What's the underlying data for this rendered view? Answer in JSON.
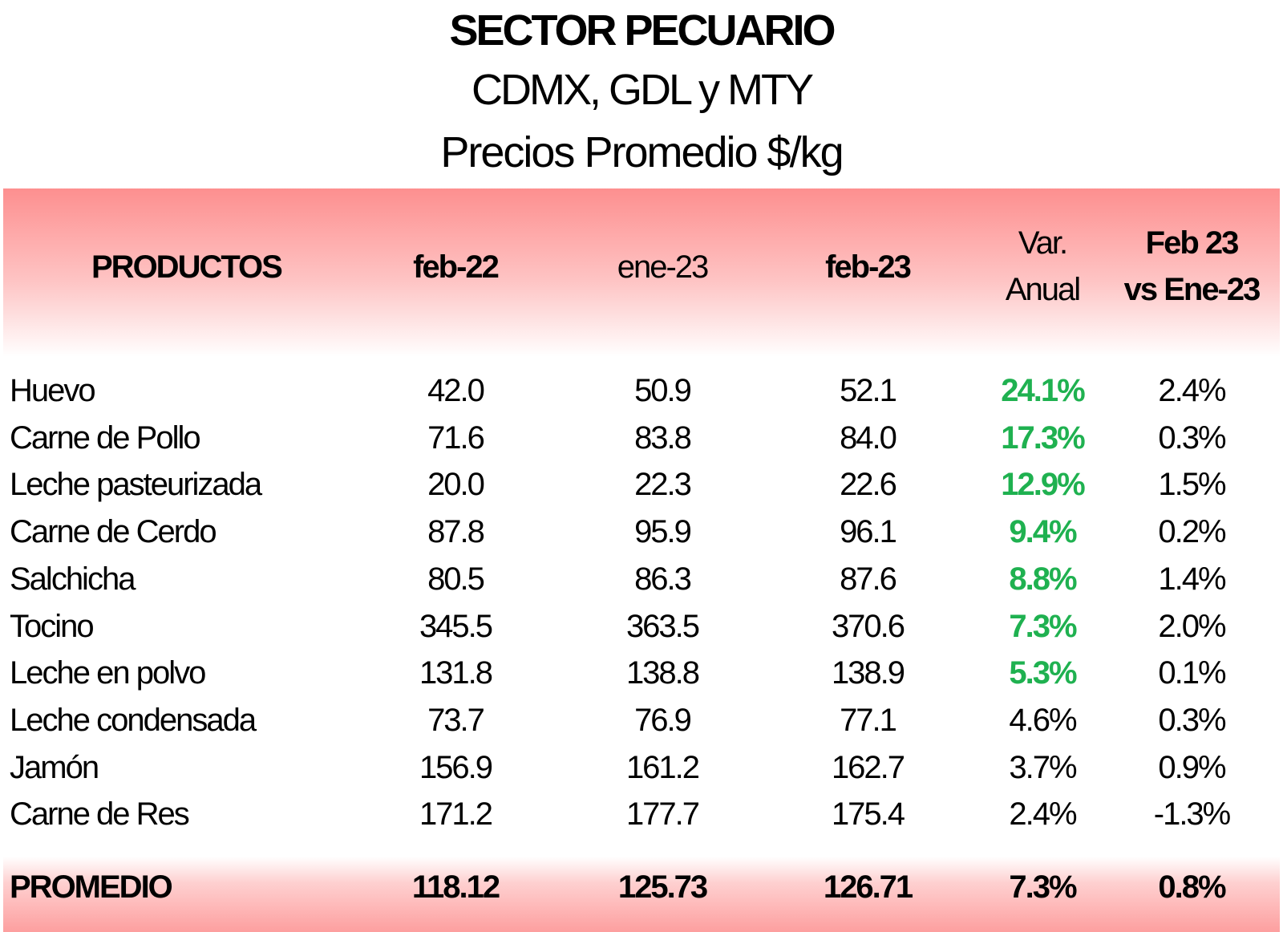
{
  "title": {
    "line1": "SECTOR PECUARIO",
    "line2": "CDMX, GDL y MTY",
    "line3": "Precios Promedio $/kg"
  },
  "header": {
    "productos": "PRODUCTOS",
    "feb22": "feb-22",
    "ene23": "ene-23",
    "feb23": "feb-23",
    "var_anual_1": "Var.",
    "var_anual_2": "Anual",
    "feb_vs_ene_1": "Feb 23",
    "feb_vs_ene_2": "vs Ene-23"
  },
  "rows": [
    {
      "producto": "Huevo",
      "feb22": "42.0",
      "ene23": "50.9",
      "feb23": "52.1",
      "var_anual": "24.1%",
      "feb_vs_ene": "2.4%",
      "highlight": true
    },
    {
      "producto": "Carne de Pollo",
      "feb22": "71.6",
      "ene23": "83.8",
      "feb23": "84.0",
      "var_anual": "17.3%",
      "feb_vs_ene": "0.3%",
      "highlight": true
    },
    {
      "producto": "Leche pasteurizada",
      "feb22": "20.0",
      "ene23": "22.3",
      "feb23": "22.6",
      "var_anual": "12.9%",
      "feb_vs_ene": "1.5%",
      "highlight": true
    },
    {
      "producto": "Carne de Cerdo",
      "feb22": "87.8",
      "ene23": "95.9",
      "feb23": "96.1",
      "var_anual": "9.4%",
      "feb_vs_ene": "0.2%",
      "highlight": true
    },
    {
      "producto": "Salchicha",
      "feb22": "80.5",
      "ene23": "86.3",
      "feb23": "87.6",
      "var_anual": "8.8%",
      "feb_vs_ene": "1.4%",
      "highlight": true
    },
    {
      "producto": "Tocino",
      "feb22": "345.5",
      "ene23": "363.5",
      "feb23": "370.6",
      "var_anual": "7.3%",
      "feb_vs_ene": "2.0%",
      "highlight": true
    },
    {
      "producto": "Leche en polvo",
      "feb22": "131.8",
      "ene23": "138.8",
      "feb23": "138.9",
      "var_anual": "5.3%",
      "feb_vs_ene": "0.1%",
      "highlight": true
    },
    {
      "producto": "Leche condensada",
      "feb22": "73.7",
      "ene23": "76.9",
      "feb23": "77.1",
      "var_anual": "4.6%",
      "feb_vs_ene": "0.3%",
      "highlight": false
    },
    {
      "producto": "Jamón",
      "feb22": "156.9",
      "ene23": "161.2",
      "feb23": "162.7",
      "var_anual": "3.7%",
      "feb_vs_ene": "0.9%",
      "highlight": false
    },
    {
      "producto": "Carne de Res",
      "feb22": "171.2",
      "ene23": "177.7",
      "feb23": "175.4",
      "var_anual": "2.4%",
      "feb_vs_ene": "-1.3%",
      "highlight": false
    }
  ],
  "promedio": {
    "label": "PROMEDIO",
    "feb22": "118.12",
    "ene23": "125.73",
    "feb23": "126.71",
    "var_anual": "7.3%",
    "feb_vs_ene": "0.8%"
  },
  "colors": {
    "header_band": "#fd8f8f",
    "footer_band": "#fd9f9f",
    "positive_highlight": "#1fb150"
  }
}
